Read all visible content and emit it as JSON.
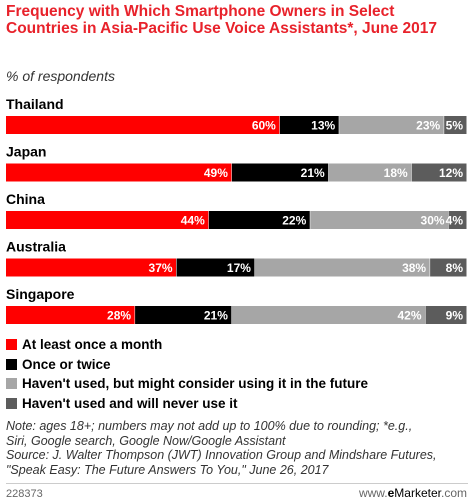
{
  "header": {
    "title": "Frequency with Which Smartphone Owners in Select Countries in Asia-Pacific Use Voice Assistants*, June 2017",
    "subtitle": "% of respondents"
  },
  "chart_data": {
    "type": "bar",
    "stacked": true,
    "orientation": "horizontal",
    "categories": [
      "Thailand",
      "Japan",
      "China",
      "Australia",
      "Singapore"
    ],
    "series": [
      {
        "name": "At least once a month",
        "color": "#ff0000",
        "values": [
          60,
          49,
          44,
          37,
          28
        ]
      },
      {
        "name": "Once or twice",
        "color": "#000000",
        "values": [
          13,
          21,
          22,
          17,
          21
        ]
      },
      {
        "name": "Haven't used, but might consider using it in the future",
        "color": "#a6a6a6",
        "values": [
          23,
          18,
          30,
          38,
          42
        ]
      },
      {
        "name": "Haven't used and will never use it",
        "color": "#5c5c5c",
        "values": [
          5,
          12,
          4,
          8,
          9
        ]
      }
    ],
    "value_suffix": "%",
    "legend_position": "bottom-left"
  },
  "footer": {
    "note_lines": [
      "Note: ages 18+; numbers may not add up to 100% due to rounding; *e.g.,",
      "Siri, Google search, Google Now/Google Assistant",
      "Source: J. Walter Thompson (JWT) Innovation Group and Mindshare Futures,",
      "\"Speak Easy: The Future Answers To You,\" June 26, 2017"
    ],
    "chart_id": "228373",
    "brand_prefix": "www.",
    "brand_e": "e",
    "brand_name": "Marketer",
    "brand_suffix": ".com"
  }
}
